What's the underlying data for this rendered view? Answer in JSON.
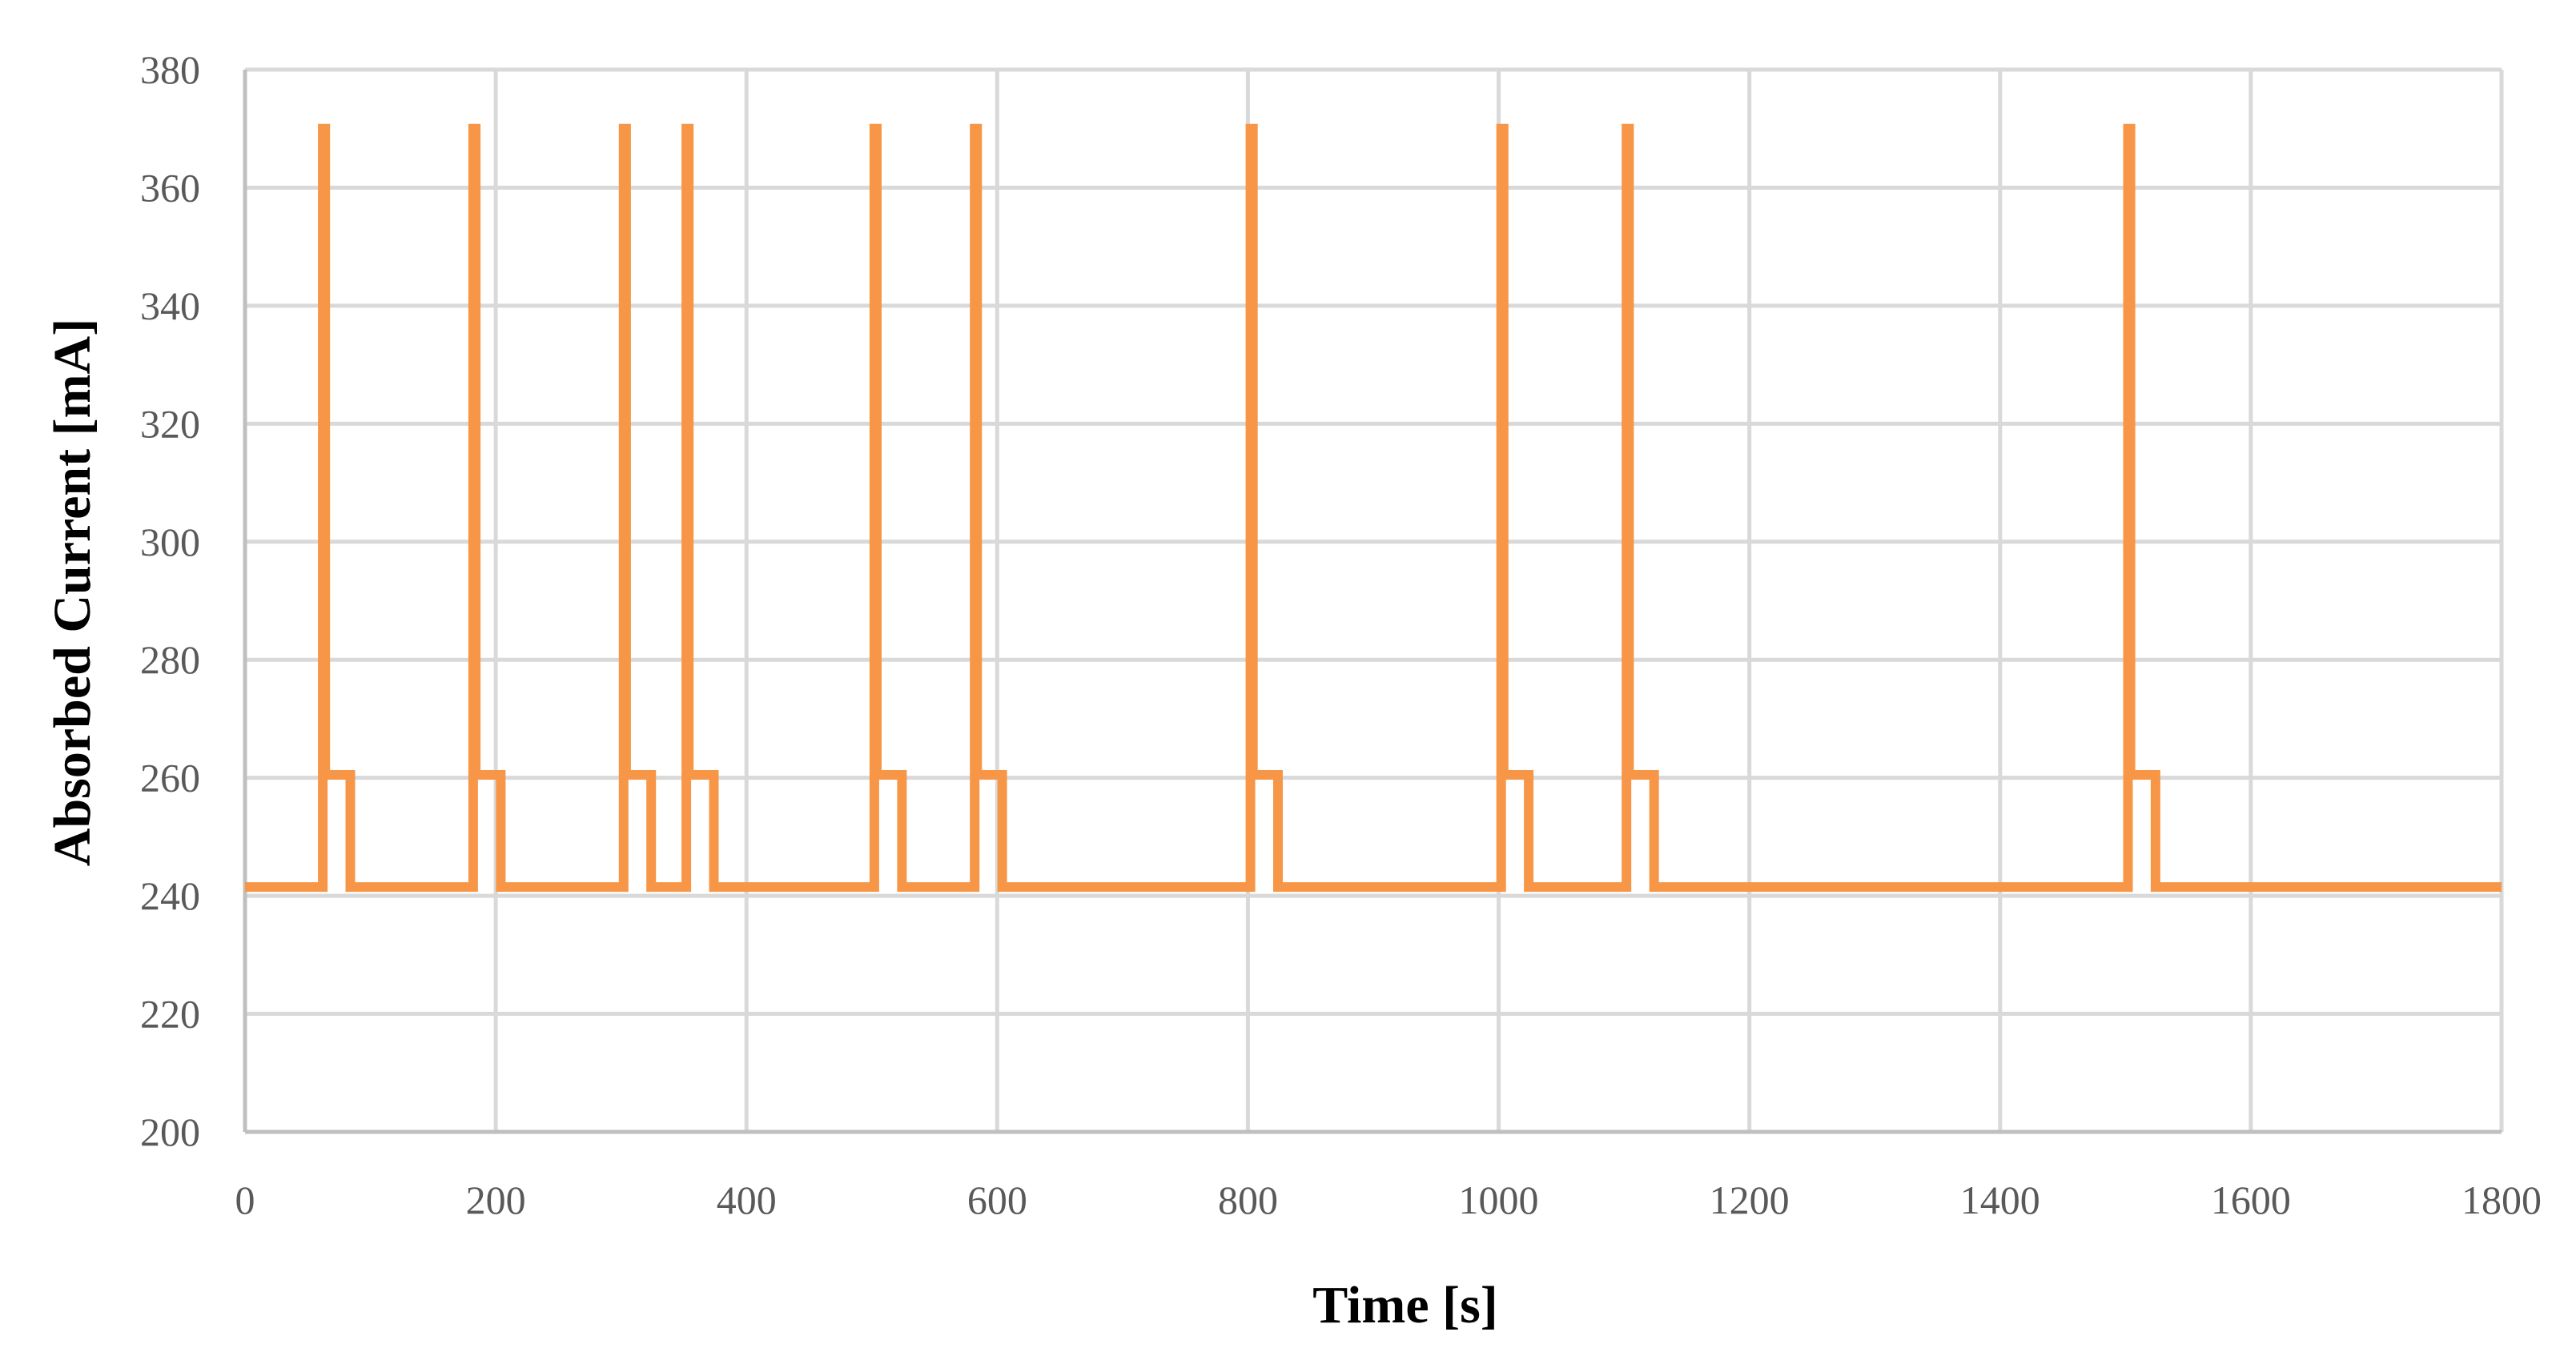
{
  "chart_data": {
    "type": "line",
    "xlabel": "Time [s]",
    "ylabel": "Absorbed Current [mA]",
    "xlim": [
      0,
      1800
    ],
    "ylim": [
      200,
      380
    ],
    "x_ticks": [
      0,
      200,
      400,
      600,
      800,
      1000,
      1200,
      1400,
      1600,
      1800
    ],
    "y_ticks": [
      200,
      220,
      240,
      260,
      280,
      300,
      320,
      340,
      360,
      380
    ],
    "grid": true,
    "legend": "none",
    "color": "#f79646",
    "series": [
      {
        "x": [
          0,
          62,
          62,
          64,
          64,
          84,
          84,
          182,
          182,
          184,
          184,
          204,
          204,
          302,
          302,
          304,
          304,
          324,
          324,
          352,
          352,
          354,
          354,
          374,
          374,
          502,
          502,
          504,
          504,
          524,
          524,
          582,
          582,
          584,
          584,
          604,
          604,
          802,
          802,
          804,
          804,
          824,
          824,
          1002,
          1002,
          1004,
          1004,
          1024,
          1024,
          1102,
          1102,
          1104,
          1104,
          1124,
          1124,
          1502,
          1502,
          1504,
          1504,
          1524,
          1524,
          1800
        ],
        "y": [
          241.5,
          241.5,
          370,
          370,
          260.5,
          260.5,
          241.5,
          241.5,
          370,
          370,
          260.5,
          260.5,
          241.5,
          241.5,
          370,
          370,
          260.5,
          260.5,
          241.5,
          241.5,
          370,
          370,
          260.5,
          260.5,
          241.5,
          241.5,
          370,
          370,
          260.5,
          260.5,
          241.5,
          241.5,
          370,
          370,
          260.5,
          260.5,
          241.5,
          241.5,
          370,
          370,
          260.5,
          260.5,
          241.5,
          241.5,
          370,
          370,
          260.5,
          260.5,
          241.5,
          241.5,
          370,
          370,
          260.5,
          260.5,
          241.5,
          241.5,
          370,
          370,
          260.5,
          260.5,
          241.5,
          241.5
        ]
      }
    ]
  }
}
